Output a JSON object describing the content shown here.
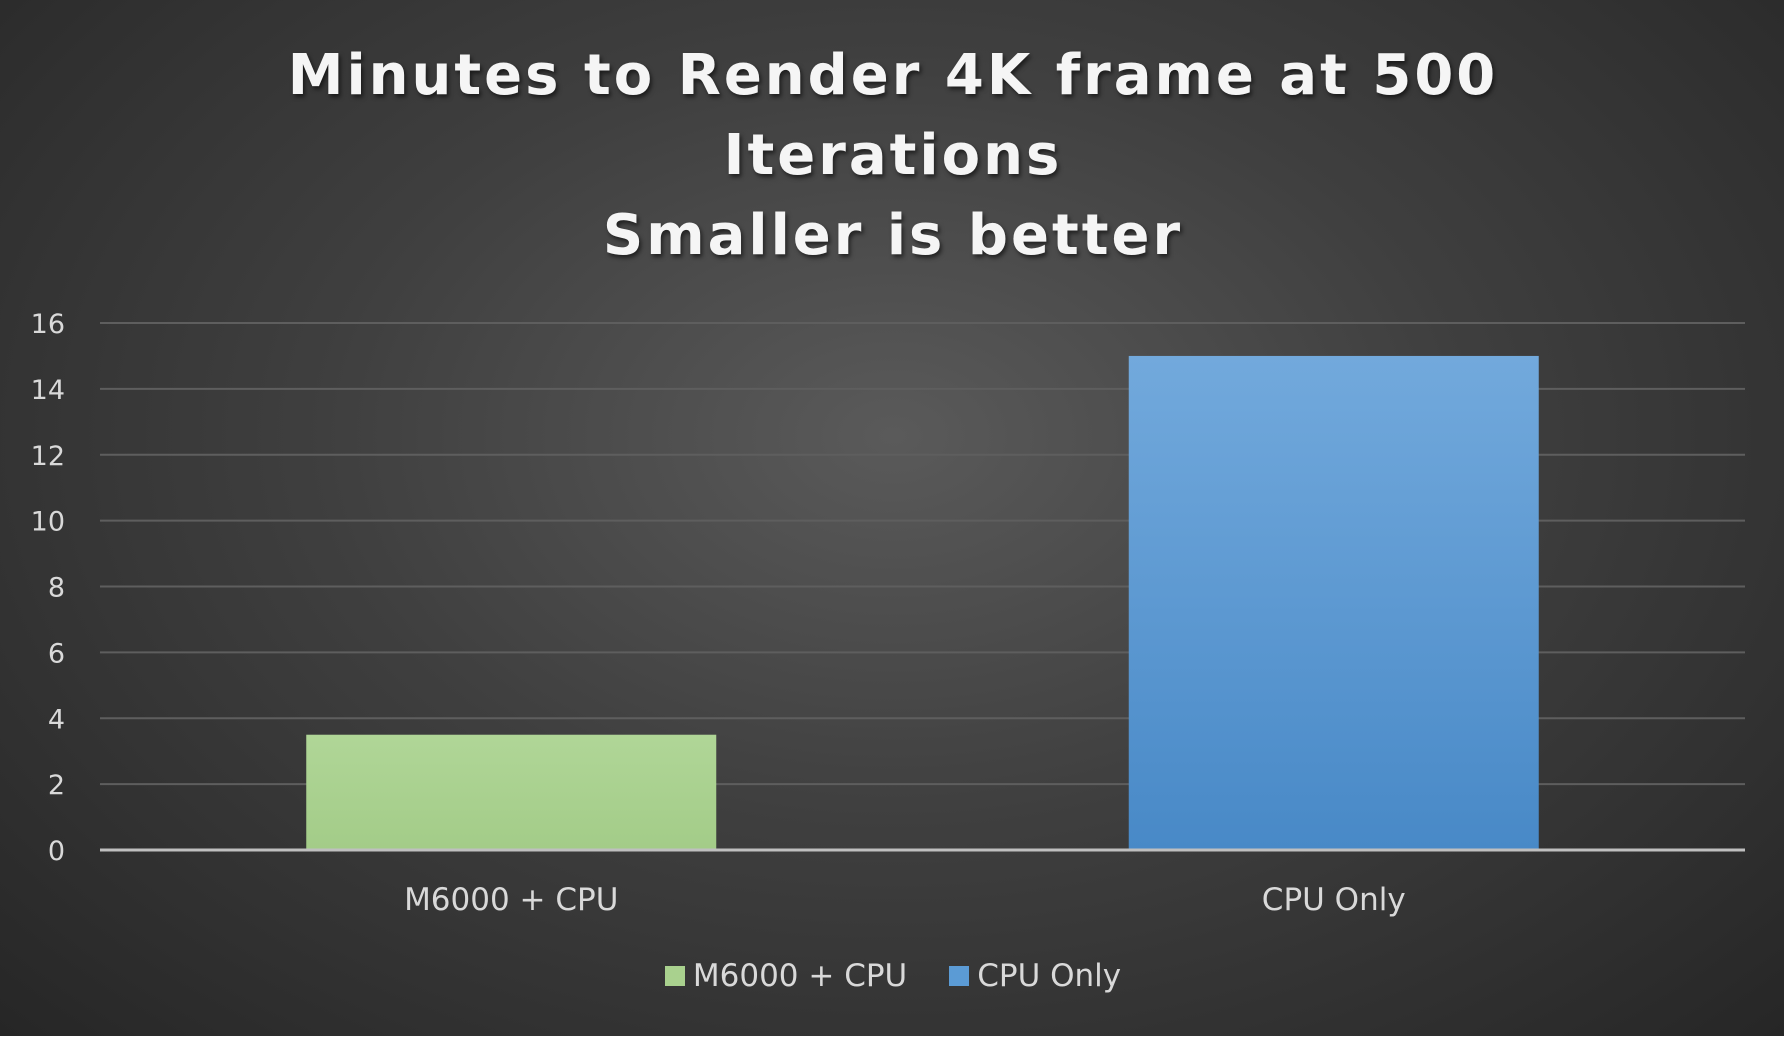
{
  "title_lines": [
    "Minutes to Render 4K frame at 500",
    "Iterations",
    "Smaller is better"
  ],
  "colors": {
    "background": "#404040",
    "grid": "#5e5e5e",
    "axis": "#bfbfbf",
    "text": "#d9d9d9",
    "series_1": "#a9d18e",
    "series_2": "#5b9bd5"
  },
  "chart_data": {
    "type": "bar",
    "title": "Minutes to Render 4K frame at 500 Iterations Smaller is better",
    "categories": [
      "M6000 + CPU",
      "CPU Only"
    ],
    "values": [
      3.5,
      15
    ],
    "bar_colors": [
      "#a9d18e",
      "#5b9bd5"
    ],
    "ylim": [
      0,
      16
    ],
    "yticks": [
      "0",
      "2",
      "4",
      "6",
      "8",
      "10",
      "12",
      "14",
      "16"
    ],
    "xlabel": "",
    "ylabel": "",
    "grid": true,
    "legend_position": "bottom",
    "legend": [
      {
        "label": "M6000 + CPU",
        "color": "#a9d18e"
      },
      {
        "label": "CPU Only",
        "color": "#5b9bd5"
      }
    ]
  }
}
